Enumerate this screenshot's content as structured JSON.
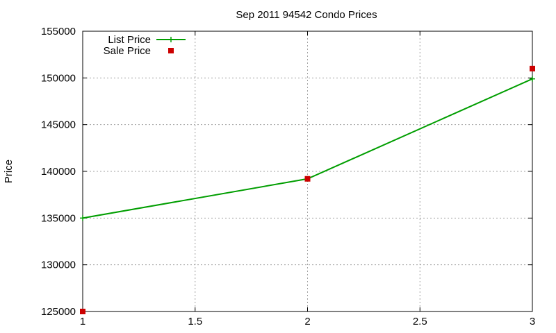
{
  "chart_data": {
    "type": "line",
    "title": "Sep 2011 94542 Condo Prices",
    "xlabel": "",
    "ylabel": "Price",
    "xlim": [
      1,
      3
    ],
    "ylim": [
      125000,
      155000
    ],
    "xticks": [
      "1",
      "1.5",
      "2",
      "2.5",
      "3"
    ],
    "yticks": [
      "125000",
      "130000",
      "135000",
      "140000",
      "145000",
      "150000",
      "155000"
    ],
    "grid": true,
    "legend_position": "top-left",
    "series": [
      {
        "name": "List Price",
        "style": "line-with-plus-markers",
        "color": "#009e00",
        "x": [
          1,
          2,
          3
        ],
        "y": [
          135000,
          139200,
          149900
        ]
      },
      {
        "name": "Sale Price",
        "style": "square-markers",
        "color": "#cc0000",
        "x": [
          1,
          2,
          3
        ],
        "y": [
          125000,
          139200,
          151000
        ]
      }
    ]
  }
}
